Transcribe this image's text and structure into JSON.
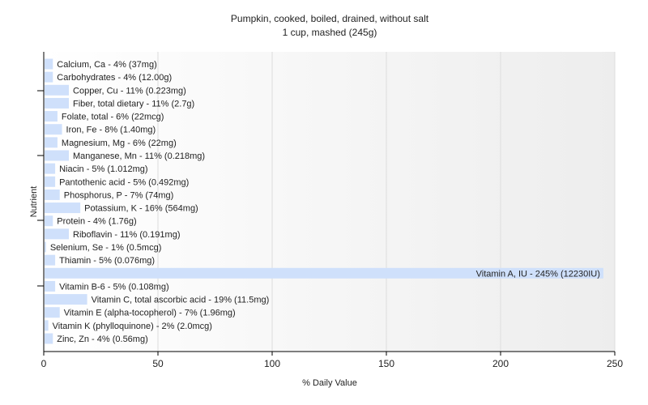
{
  "chart_data": {
    "type": "bar",
    "orientation": "horizontal",
    "title": "Pumpkin, cooked, boiled, drained, without salt",
    "subtitle": "1 cup, mashed (245g)",
    "xlabel": "% Daily Value",
    "ylabel": "Nutrient",
    "xlim": [
      0,
      250
    ],
    "xticks": [
      "0",
      "50",
      "100",
      "150",
      "200",
      "250"
    ],
    "grid": true,
    "bar_color": "#cfe0fb",
    "categories": [
      "Calcium, Ca - 4% (37mg)",
      "Carbohydrates - 4% (12.00g)",
      "Copper, Cu - 11% (0.223mg)",
      "Fiber, total dietary - 11% (2.7g)",
      "Folate, total - 6% (22mcg)",
      "Iron, Fe - 8% (1.40mg)",
      "Magnesium, Mg - 6% (22mg)",
      "Manganese, Mn - 11% (0.218mg)",
      "Niacin - 5% (1.012mg)",
      "Pantothenic acid - 5% (0.492mg)",
      "Phosphorus, P - 7% (74mg)",
      "Potassium, K - 16% (564mg)",
      "Protein - 4% (1.76g)",
      "Riboflavin - 11% (0.191mg)",
      "Selenium, Se - 1% (0.5mcg)",
      "Thiamin - 5% (0.076mg)",
      "Vitamin A, IU - 245% (12230IU)",
      "Vitamin B-6 - 5% (0.108mg)",
      "Vitamin C, total ascorbic acid - 19% (11.5mg)",
      "Vitamin E (alpha-tocopherol) - 7% (1.96mg)",
      "Vitamin K (phylloquinone) - 2% (2.0mcg)",
      "Zinc, Zn - 4% (0.56mg)"
    ],
    "values": [
      4,
      4,
      11,
      11,
      6,
      8,
      6,
      11,
      5,
      5,
      7,
      16,
      4,
      11,
      1,
      5,
      245,
      5,
      19,
      7,
      2,
      4
    ]
  }
}
